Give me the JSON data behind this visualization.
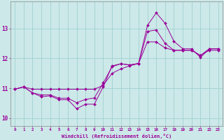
{
  "xlabel": "Windchill (Refroidissement éolien,°C)",
  "xlim": [
    -0.5,
    23.5
  ],
  "ylim": [
    9.75,
    13.9
  ],
  "yticks": [
    10,
    11,
    12,
    13
  ],
  "xticks": [
    0,
    1,
    2,
    3,
    4,
    5,
    6,
    7,
    8,
    9,
    10,
    11,
    12,
    13,
    14,
    15,
    16,
    17,
    18,
    19,
    20,
    21,
    22,
    23
  ],
  "background_color": "#cce8e8",
  "grid_color": "#99cccc",
  "line_color": "#990099",
  "series1_x": [
    0,
    1,
    2,
    3,
    4,
    5,
    6,
    7,
    8,
    9,
    10,
    11,
    12,
    13,
    14,
    15,
    16,
    17,
    18,
    19,
    20,
    21,
    22,
    23
  ],
  "series1_y": [
    10.97,
    11.05,
    10.85,
    10.72,
    10.75,
    10.62,
    10.62,
    10.32,
    10.47,
    10.47,
    11.05,
    11.75,
    11.82,
    11.78,
    11.83,
    13.1,
    13.52,
    13.17,
    12.57,
    12.32,
    12.32,
    12.03,
    12.32,
    12.32
  ],
  "series2_x": [
    0,
    1,
    2,
    3,
    4,
    5,
    6,
    7,
    8,
    9,
    10,
    11,
    12,
    13,
    14,
    15,
    16,
    17,
    18,
    19,
    20,
    21,
    22,
    23
  ],
  "series2_y": [
    10.97,
    11.05,
    10.85,
    10.78,
    10.78,
    10.67,
    10.67,
    10.52,
    10.63,
    10.68,
    11.18,
    11.72,
    11.82,
    11.78,
    11.83,
    12.9,
    12.95,
    12.5,
    12.27,
    12.27,
    12.27,
    12.1,
    12.27,
    12.27
  ],
  "series3_x": [
    0,
    1,
    2,
    3,
    4,
    5,
    6,
    7,
    8,
    9,
    10,
    11,
    12,
    13,
    14,
    15,
    16,
    17,
    18,
    19,
    20,
    21,
    22,
    23
  ],
  "series3_y": [
    10.97,
    11.05,
    10.97,
    10.97,
    10.97,
    10.97,
    10.97,
    10.97,
    10.97,
    10.97,
    11.1,
    11.5,
    11.65,
    11.75,
    11.83,
    12.55,
    12.55,
    12.35,
    12.27,
    12.27,
    12.27,
    12.1,
    12.32,
    12.32
  ]
}
